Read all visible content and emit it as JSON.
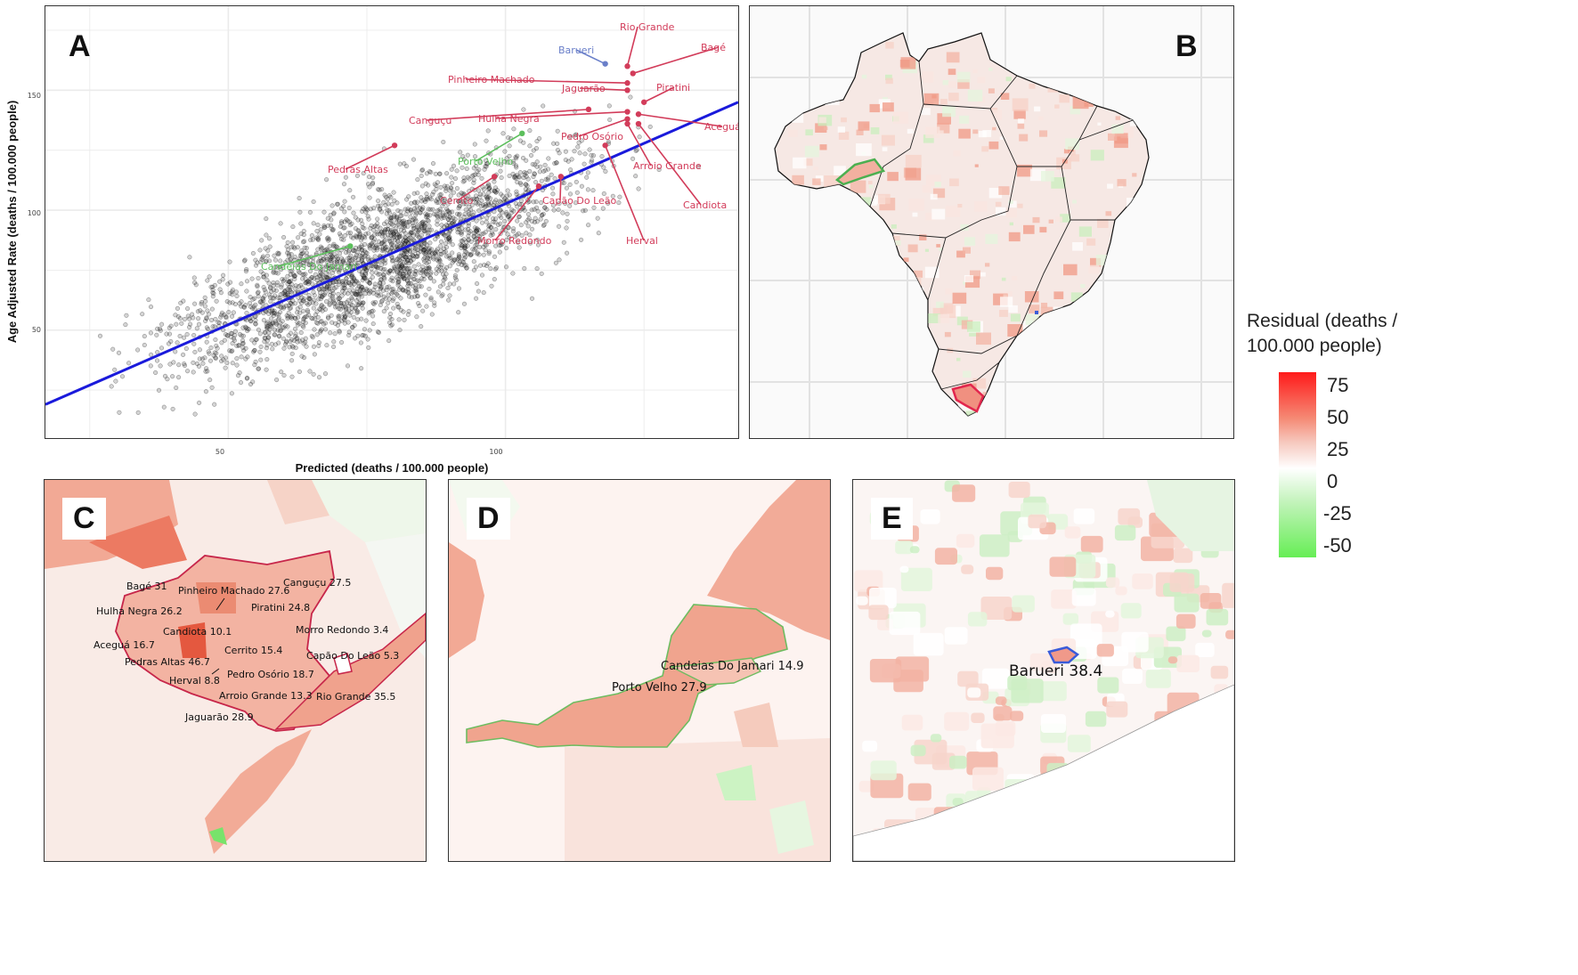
{
  "panels": {
    "a": "A",
    "b": "B",
    "c": "C",
    "d": "D",
    "e": "E"
  },
  "scatter": {
    "xlabel": "Predicted (deaths / 100.000 people)",
    "ylabel": "Age Adjusted Rate (deaths / 100.000 people)",
    "x_ticks": [
      "50",
      "100"
    ],
    "y_ticks": [
      "50",
      "100",
      "150"
    ],
    "labels": {
      "rio_grande": "Rio Grande",
      "barueri": "Barueri",
      "bage": "Bagé",
      "pinheiro_machado": "Pinheiro Machado",
      "jaguarao": "Jaguarão",
      "piratini": "Piratini",
      "cangucu": "Canguçu",
      "hulha_negra": "Hulha Negra",
      "acegua": "Aceguá",
      "pedro_osorio": "Pedro Osório",
      "pedras_altas": "Pedras Altas",
      "porto_velho": "Porto Velho",
      "arroio_grande": "Arroio Grande",
      "cerrito": "Cerrito",
      "capao_do_leao": "Capão Do Leão",
      "candiota": "Candiota",
      "morro_redondo": "Morro Redondo",
      "herval": "Herval",
      "candeias": "Candeias Do Jamari"
    },
    "colors": {
      "highlight_red": "#d23c5a",
      "highlight_green": "#5cbf5c",
      "highlight_blue": "#6a7fc9",
      "fit_line": "#1a1adb"
    }
  },
  "chart_data": {
    "type": "scatter",
    "xlabel": "Predicted (deaths / 100.000 people)",
    "ylabel": "Age Adjusted Rate (deaths / 100.000 people)",
    "xlim": [
      17,
      142
    ],
    "ylim": [
      5,
      185
    ],
    "fit_line": {
      "x": [
        17,
        142
      ],
      "y": [
        19,
        145
      ]
    },
    "highlighted": [
      {
        "name": "Rio Grande",
        "x": 122,
        "y": 160
      },
      {
        "name": "Barueri",
        "x": 118,
        "y": 161
      },
      {
        "name": "Bagé",
        "x": 123,
        "y": 157
      },
      {
        "name": "Pinheiro Machado",
        "x": 122,
        "y": 153
      },
      {
        "name": "Jaguarão",
        "x": 122,
        "y": 150
      },
      {
        "name": "Piratini",
        "x": 125,
        "y": 145
      },
      {
        "name": "Canguçu",
        "x": 115,
        "y": 142
      },
      {
        "name": "Hulha Negra",
        "x": 122,
        "y": 141
      },
      {
        "name": "Aceguá",
        "x": 124,
        "y": 140
      },
      {
        "name": "Pedro Osório",
        "x": 122,
        "y": 138
      },
      {
        "name": "Pedras Altas",
        "x": 80,
        "y": 127
      },
      {
        "name": "Porto Velho",
        "x": 103,
        "y": 132
      },
      {
        "name": "Arroio Grande",
        "x": 122,
        "y": 136
      },
      {
        "name": "Cerrito",
        "x": 98,
        "y": 114
      },
      {
        "name": "Capão Do Leão",
        "x": 110,
        "y": 114
      },
      {
        "name": "Candiota",
        "x": 124,
        "y": 136
      },
      {
        "name": "Morro Redondo",
        "x": 106,
        "y": 110
      },
      {
        "name": "Herval",
        "x": 118,
        "y": 127
      },
      {
        "name": "Candeias Do Jamari",
        "x": 72,
        "y": 85
      }
    ]
  },
  "legend": {
    "title_line1": "Residual (deaths /",
    "title_line2": "100.000 people)",
    "ticks": [
      "75",
      "50",
      "25",
      "0",
      "-25",
      "-50"
    ],
    "colors": {
      "high": "#ff1a1a",
      "mid": "#ffffff",
      "low": "#66ee55"
    }
  },
  "map_c": {
    "labels": {
      "bage": "Bagé 31",
      "pinheiro": "Pinheiro Machado 27.6",
      "cangucu": "Canguçu 27.5",
      "hulha": "Hulha Negra 26.2",
      "piratini": "Piratini 24.8",
      "candiota": "Candiota 10.1",
      "morro": "Morro Redondo 3.4",
      "acegua": "Aceguá 16.7",
      "cerrito": "Cerrito 15.4",
      "capao": "Capão Do Leão 5.3",
      "pedras": "Pedras Altas 46.7",
      "pedro": "Pedro Osório 18.7",
      "herval": "Herval 8.8",
      "arroio": "Arroio Grande 13.3",
      "rio": "Rio Grande 35.5",
      "jaguarao": "Jaguarão 28.9"
    }
  },
  "map_d": {
    "labels": {
      "candeias": "Candeias Do Jamari 14.9",
      "porto": "Porto Velho 27.9"
    }
  },
  "map_e": {
    "labels": {
      "barueri": "Barueri 38.4"
    }
  }
}
